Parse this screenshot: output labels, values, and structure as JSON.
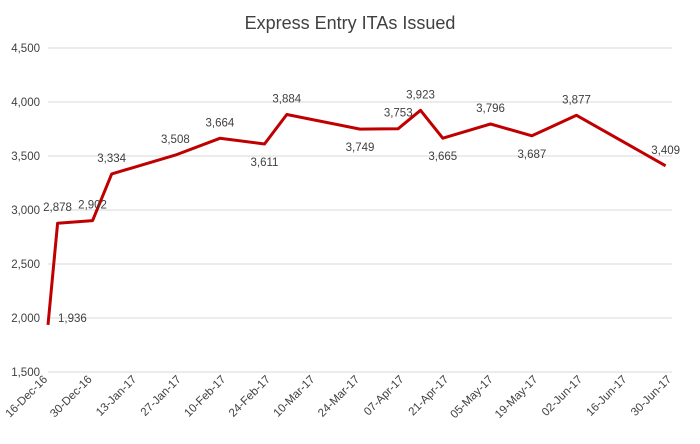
{
  "chart_data": {
    "type": "line",
    "title": "Express Entry ITAs Issued",
    "xlabel": "",
    "ylabel": "",
    "ylim": [
      1500,
      4500
    ],
    "yticks": [
      "1,500",
      "2,000",
      "2,500",
      "3,000",
      "3,500",
      "4,000",
      "4,500"
    ],
    "x_tick_labels": [
      "16-Dec-16",
      "30-Dec-16",
      "13-Jan-17",
      "27-Jan-17",
      "10-Feb-17",
      "24-Feb-17",
      "10-Mar-17",
      "24-Mar-17",
      "07-Apr-17",
      "21-Apr-17",
      "05-May-17",
      "19-May-17",
      "02-Jun-17",
      "16-Jun-17",
      "30-Jun-17"
    ],
    "grid": true,
    "legend": "none",
    "series": [
      {
        "color": "#c00000",
        "points": [
          {
            "x": "2016-12-16",
            "y": 1936,
            "label": "1,936"
          },
          {
            "x": "2016-12-19",
            "y": 2878,
            "label": "2,878"
          },
          {
            "x": "2016-12-30",
            "y": 2902,
            "label": "2,902"
          },
          {
            "x": "2017-01-05",
            "y": 3334,
            "label": "3,334"
          },
          {
            "x": "2017-01-25",
            "y": 3508,
            "label": "3,508"
          },
          {
            "x": "2017-02-08",
            "y": 3664,
            "label": "3,664"
          },
          {
            "x": "2017-02-22",
            "y": 3611,
            "label": "3,611"
          },
          {
            "x": "2017-03-01",
            "y": 3884,
            "label": "3,884"
          },
          {
            "x": "2017-03-24",
            "y": 3749,
            "label": "3,749"
          },
          {
            "x": "2017-04-05",
            "y": 3753,
            "label": "3,753"
          },
          {
            "x": "2017-04-12",
            "y": 3923,
            "label": "3,923"
          },
          {
            "x": "2017-04-19",
            "y": 3665,
            "label": "3,665"
          },
          {
            "x": "2017-05-04",
            "y": 3796,
            "label": "3,796"
          },
          {
            "x": "2017-05-17",
            "y": 3687,
            "label": "3,687"
          },
          {
            "x": "2017-05-31",
            "y": 3877,
            "label": "3,877"
          },
          {
            "x": "2017-06-28",
            "y": 3409,
            "label": "3,409"
          }
        ]
      }
    ]
  }
}
